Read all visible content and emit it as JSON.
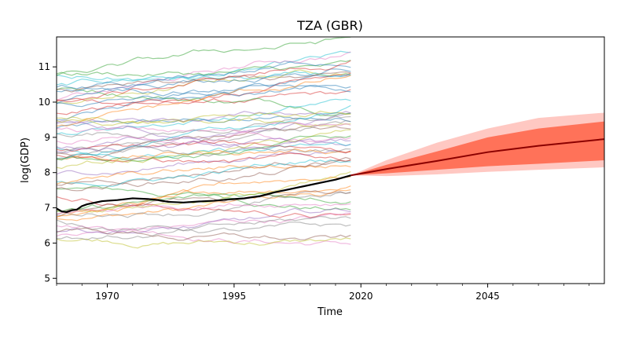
{
  "chart_data": {
    "type": "line",
    "title": "TZA (GBR)",
    "xlabel": "Time",
    "ylabel": "log(GDP)",
    "xlim": [
      1960,
      2068
    ],
    "ylim": [
      4.85,
      11.85
    ],
    "x_ticks": [
      1970,
      1995,
      2020,
      2045
    ],
    "y_ticks": [
      5,
      6,
      7,
      8,
      9,
      10,
      11
    ],
    "grid": false,
    "legend": "none",
    "background_series": {
      "description_count": 60,
      "x_range": [
        1960,
        2018
      ],
      "level_range": [
        5.7,
        11.4
      ],
      "alpha": 0.5
    },
    "highlight_series": {
      "color": "#000000",
      "points": [
        [
          1960,
          6.98
        ],
        [
          1961,
          6.9
        ],
        [
          1962,
          6.88
        ],
        [
          1963,
          6.93
        ],
        [
          1964,
          6.95
        ],
        [
          1965,
          7.05
        ],
        [
          1966,
          7.1
        ],
        [
          1967,
          7.13
        ],
        [
          1968,
          7.16
        ],
        [
          1969,
          7.19
        ],
        [
          1970,
          7.2
        ],
        [
          1972,
          7.22
        ],
        [
          1975,
          7.27
        ],
        [
          1978,
          7.25
        ],
        [
          1980,
          7.22
        ],
        [
          1982,
          7.17
        ],
        [
          1985,
          7.15
        ],
        [
          1988,
          7.18
        ],
        [
          1991,
          7.2
        ],
        [
          1994,
          7.24
        ],
        [
          1997,
          7.27
        ],
        [
          2000,
          7.33
        ],
        [
          2003,
          7.44
        ],
        [
          2006,
          7.53
        ],
        [
          2009,
          7.62
        ],
        [
          2012,
          7.71
        ],
        [
          2015,
          7.8
        ],
        [
          2018,
          7.92
        ]
      ]
    },
    "forecast": {
      "median_color": "#8b0000",
      "inner_band_color": "#ff6347",
      "outer_band_color": "#ffb6ad",
      "points": [
        {
          "x": 2018,
          "median": 7.92,
          "inner": [
            7.92,
            7.92
          ],
          "outer": [
            7.92,
            7.92
          ]
        },
        {
          "x": 2025,
          "median": 8.1,
          "inner": [
            7.98,
            8.22
          ],
          "outer": [
            7.9,
            8.35
          ]
        },
        {
          "x": 2035,
          "median": 8.33,
          "inner": [
            8.08,
            8.6
          ],
          "outer": [
            7.95,
            8.85
          ]
        },
        {
          "x": 2045,
          "median": 8.58,
          "inner": [
            8.18,
            9.0
          ],
          "outer": [
            8.02,
            9.25
          ]
        },
        {
          "x": 2055,
          "median": 8.76,
          "inner": [
            8.25,
            9.25
          ],
          "outer": [
            8.08,
            9.55
          ]
        },
        {
          "x": 2068,
          "median": 8.95,
          "inner": [
            8.35,
            9.45
          ],
          "outer": [
            8.15,
            9.7
          ]
        }
      ]
    }
  }
}
